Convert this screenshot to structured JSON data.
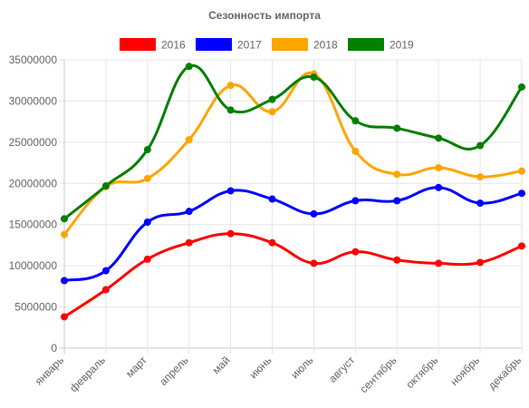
{
  "chart_data": {
    "type": "line",
    "title": "Сезонность импорта",
    "xlabel": "",
    "ylabel": "",
    "categories": [
      "январь",
      "февраль",
      "март",
      "апрель",
      "май",
      "июнь",
      "июль",
      "август",
      "сентябрь",
      "октябрь",
      "ноябрь",
      "декабрь"
    ],
    "ylim": [
      0,
      35000000
    ],
    "yticks": [
      0,
      5000000,
      10000000,
      15000000,
      20000000,
      25000000,
      30000000,
      35000000
    ],
    "grid": true,
    "legend_position": "top",
    "series": [
      {
        "name": "2016",
        "color": "#ff0000",
        "values": [
          3800000,
          7100000,
          10800000,
          12800000,
          13900000,
          12800000,
          10300000,
          11700000,
          10700000,
          10300000,
          10400000,
          12400000
        ]
      },
      {
        "name": "2017",
        "color": "#0000ff",
        "values": [
          8200000,
          9400000,
          15300000,
          16600000,
          19100000,
          18100000,
          16300000,
          17900000,
          17900000,
          19500000,
          17600000,
          18800000
        ]
      },
      {
        "name": "2018",
        "color": "#ffa500",
        "values": [
          13800000,
          19600000,
          20600000,
          25300000,
          31900000,
          28700000,
          33300000,
          23900000,
          21100000,
          21900000,
          20800000,
          21500000
        ]
      },
      {
        "name": "2019",
        "color": "#008000",
        "values": [
          15700000,
          19700000,
          24100000,
          34200000,
          28900000,
          30200000,
          32900000,
          27600000,
          26700000,
          25500000,
          24600000,
          31700000
        ]
      }
    ]
  }
}
